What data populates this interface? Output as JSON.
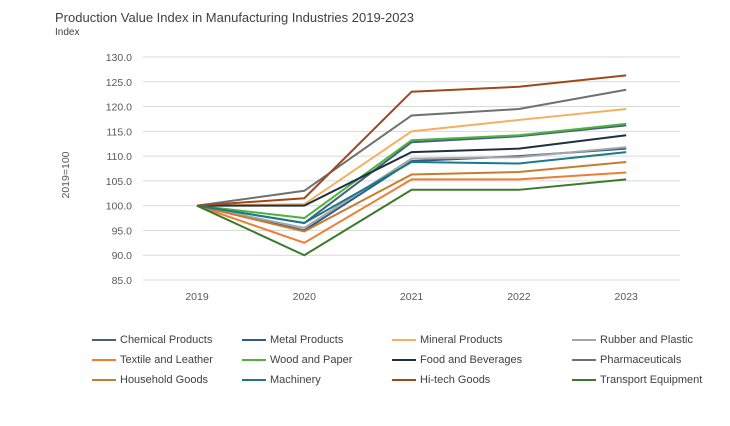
{
  "chart_data": {
    "type": "line",
    "title": "Production Value Index in Manufacturing Industries 2019-2023",
    "subtitle": "Index",
    "ylabel": "2019=100",
    "xlabel": "",
    "x": [
      "2019",
      "2020",
      "2021",
      "2022",
      "2023"
    ],
    "ylim": [
      85,
      130
    ],
    "yticks": [
      "130.0",
      "125.0",
      "120.0",
      "115.0",
      "110.0",
      "105.0",
      "100.0",
      "95.0",
      "90.0",
      "85.0"
    ],
    "grid": true,
    "legend_position": "bottom",
    "series": [
      {
        "name": "Chemical Products",
        "color": "#44607e",
        "values": [
          100,
          96.5,
          112.8,
          114.0,
          116.2
        ]
      },
      {
        "name": "Metal Products",
        "color": "#2e5c86",
        "values": [
          100,
          95.0,
          109.0,
          110.0,
          111.5
        ]
      },
      {
        "name": "Mineral Products",
        "color": "#f4b060",
        "values": [
          100,
          100.3,
          115.0,
          117.3,
          119.5
        ]
      },
      {
        "name": "Rubber and Plastic",
        "color": "#a6a6a6",
        "values": [
          100,
          95.5,
          109.5,
          109.8,
          111.8
        ]
      },
      {
        "name": "Textile and Leather",
        "color": "#ed7d31",
        "values": [
          100,
          92.5,
          105.3,
          105.3,
          106.7
        ]
      },
      {
        "name": "Wood and Paper",
        "color": "#4db33d",
        "values": [
          100,
          97.5,
          113.2,
          114.2,
          116.5
        ]
      },
      {
        "name": "Food and Beverages",
        "color": "#1f3040",
        "values": [
          100,
          100.0,
          110.8,
          111.5,
          114.2
        ]
      },
      {
        "name": "Pharmaceuticals",
        "color": "#707070",
        "values": [
          100,
          103.0,
          118.2,
          119.5,
          123.4
        ]
      },
      {
        "name": "Household Goods",
        "color": "#c87c30",
        "values": [
          100,
          94.8,
          106.3,
          106.8,
          108.8
        ]
      },
      {
        "name": "Machinery",
        "color": "#1a7a8a",
        "values": [
          100,
          96.5,
          108.8,
          108.5,
          110.8
        ]
      },
      {
        "name": "Hi-tech Goods",
        "color": "#a0481a",
        "values": [
          100,
          101.5,
          123.0,
          124.0,
          126.3
        ]
      },
      {
        "name": "Transport Equipment",
        "color": "#3a7a2a",
        "values": [
          100,
          90.0,
          103.2,
          103.2,
          105.3
        ]
      }
    ]
  }
}
